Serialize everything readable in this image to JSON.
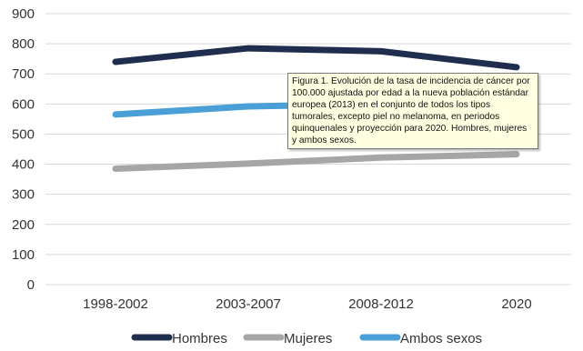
{
  "chart_data": {
    "type": "line",
    "categories": [
      "1998-2002",
      "2003-2007",
      "2008-2012",
      "2020"
    ],
    "series": [
      {
        "name": "Hombres",
        "values": [
          740,
          785,
          775,
          722
        ],
        "color": "#1f2d4e"
      },
      {
        "name": "Mujeres",
        "values": [
          385,
          402,
          422,
          433
        ],
        "color": "#a6a6a6"
      },
      {
        "name": "Ambos sexos",
        "values": [
          565,
          592,
          600,
          600
        ],
        "color": "#4a9fd6"
      }
    ],
    "ylim": [
      0,
      900
    ],
    "yticks": [
      "0",
      "100",
      "200",
      "300",
      "400",
      "500",
      "600",
      "700",
      "800",
      "900"
    ],
    "grid": true,
    "legend_position": "bottom",
    "tooltip_text": "Figura 1. Evolución de la tasa de incidencia de cáncer por 100.000 ajustada por edad a la nueva población estándar europea (2013) en el conjunto de todos los tipos tumorales, excepto piel no melanoma, en periodos quinquenales y proyección para 2020. Hombres, mujeres y ambos sexos."
  }
}
